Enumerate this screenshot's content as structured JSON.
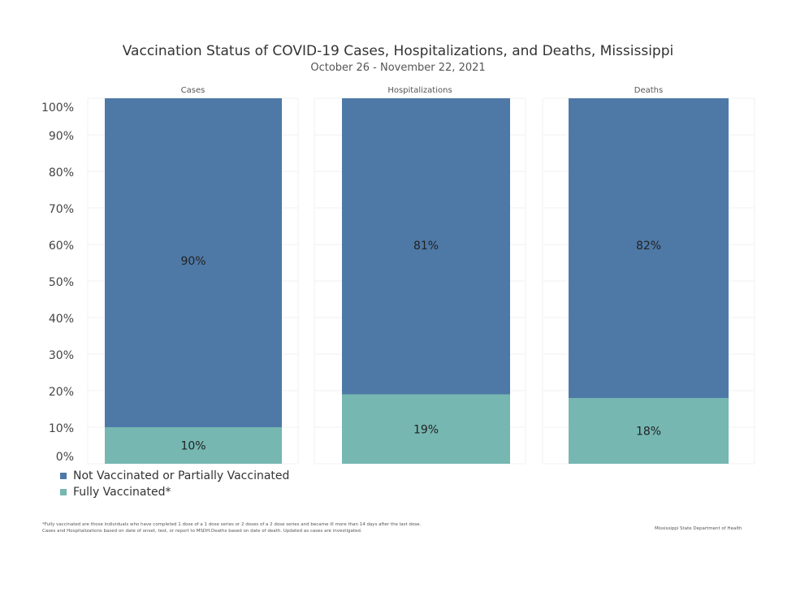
{
  "chart_data": {
    "type": "bar",
    "stacked": true,
    "title": "Vaccination Status of COVID-19 Cases, Hospitalizations, and Deaths, Mississippi",
    "subtitle": "October 26 - November 22, 2021",
    "categories": [
      "Cases",
      "Hospitalizations",
      "Deaths"
    ],
    "series": [
      {
        "name": "Fully Vaccinated*",
        "color": "#76b7b2",
        "values": [
          10,
          19,
          18
        ],
        "labels": [
          "10%",
          "19%",
          "18%"
        ]
      },
      {
        "name": "Not Vaccinated or Partially Vaccinated",
        "color": "#4e79a7",
        "values": [
          90,
          81,
          82
        ],
        "labels": [
          "90%",
          "81%",
          "82%"
        ]
      }
    ],
    "ylim": [
      0,
      100
    ],
    "yticks": [
      "0%",
      "10%",
      "20%",
      "30%",
      "40%",
      "50%",
      "60%",
      "70%",
      "80%",
      "90%",
      "100%"
    ],
    "grid": true,
    "legend_position": "bottom-left",
    "legend": [
      "Not Vaccinated or Partially Vaccinated",
      "Fully Vaccinated*"
    ]
  },
  "footnotes": [
    "*Fully vaccinated are those individuals who have completed 1 dose of a 1 dose series or 2 doses of a 2 dose series and became ill more than 14 days after the last dose.",
    "Cases and Hospitalizations based on date of onset, test, or report to MSDH.Deaths based on date of death. Updated as cases are investigated."
  ],
  "source": "Mississippi State Department of Health"
}
